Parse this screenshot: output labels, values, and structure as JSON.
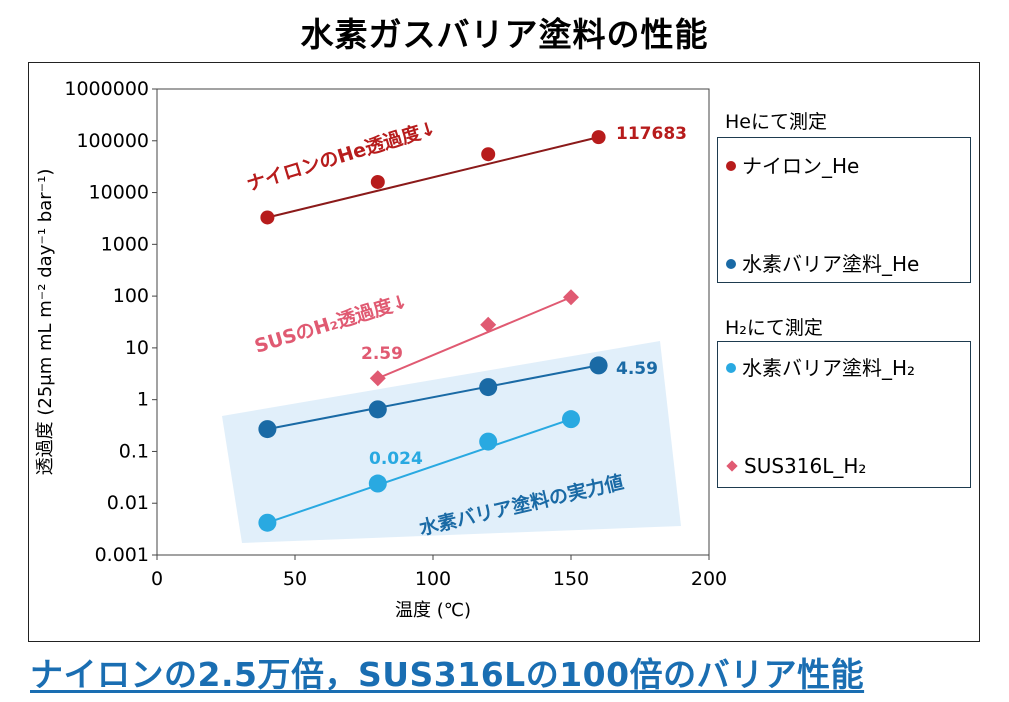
{
  "title": "水素ガスバリア塗料の性能",
  "caption": "ナイロンの2.5万倍，SUS316Lの100倍のバリア性能",
  "legend": {
    "group_he_title": "Heにて測定",
    "group_h2_title": "H₂にて測定",
    "entries": [
      {
        "label": "ナイロン_He",
        "color": "#b71c1c",
        "marker": "circle"
      },
      {
        "label": "水素バリア塗料_He",
        "color": "#1a6aa5",
        "marker": "circle"
      },
      {
        "label": "水素バリア塗料_H₂",
        "color": "#29a9e1",
        "marker": "circle"
      },
      {
        "label": "SUS316L_H₂",
        "color": "#e05a72",
        "marker": "diamond"
      }
    ]
  },
  "chart_data": {
    "type": "scatter",
    "yscale": "log",
    "xlabel": "温度 (℃)",
    "ylabel": "透過度 (25μm mL m⁻² day⁻¹ bar⁻¹)",
    "xlim": [
      0,
      200
    ],
    "ylim": [
      0.001,
      1000000
    ],
    "xticks": [
      "0",
      "50",
      "100",
      "150",
      "200"
    ],
    "yticks": [
      "0.001",
      "0.01",
      "0.1",
      "1",
      "10",
      "100",
      "1000",
      "10000",
      "100000",
      "1000000"
    ],
    "series": [
      {
        "name": "ナイロン_He",
        "color": "#b71c1c",
        "line_color": "#8b1a1a",
        "marker": "circle",
        "x": [
          40,
          80,
          120,
          160
        ],
        "y": [
          3300,
          16000,
          55000,
          117683
        ]
      },
      {
        "name": "水素バリア塗料_He",
        "color": "#1a6aa5",
        "line_color": "#1a6aa5",
        "marker": "circle",
        "x": [
          40,
          80,
          120,
          160
        ],
        "y": [
          0.27,
          0.65,
          1.75,
          4.59
        ]
      },
      {
        "name": "水素バリア塗料_H₂",
        "color": "#29a9e1",
        "line_color": "#29a9e1",
        "marker": "circle",
        "x": [
          40,
          80,
          120,
          150
        ],
        "y": [
          0.0042,
          0.024,
          0.155,
          0.42
        ]
      },
      {
        "name": "SUS316L_H₂",
        "color": "#e05a72",
        "line_color": "#e05a72",
        "marker": "diamond",
        "x": [
          80,
          120,
          150
        ],
        "y": [
          2.59,
          28,
          95
        ]
      }
    ],
    "value_labels": [
      "117683",
      "4.59",
      "0.024",
      "2.59"
    ],
    "annotations": {
      "nylon": "ナイロンのHe透過度↓",
      "sus": "SUSのH₂透過度↓",
      "barrier": "水素バリア塗料の実力値"
    }
  }
}
